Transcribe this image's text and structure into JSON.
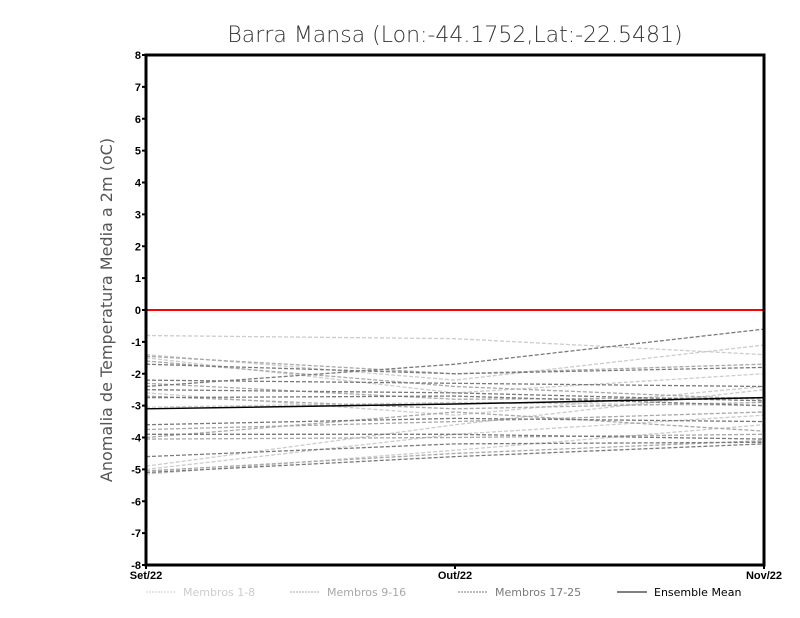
{
  "chart_data": {
    "type": "line",
    "title": "Barra Mansa (Lon:-44.1752,Lat:-22.5481)",
    "xlabel": "",
    "ylabel": "Anomalia de Temperatura Media a 2m (oC)",
    "categories": [
      "Set/22",
      "Out/22",
      "Nov/22"
    ],
    "ylim": [
      -8,
      8
    ],
    "yticks": [
      "-8",
      "-7",
      "-6",
      "-5",
      "-4",
      "-3",
      "-2",
      "-1",
      "0",
      "1",
      "2",
      "3",
      "4",
      "5",
      "6",
      "7",
      "8"
    ],
    "reference_line": {
      "value": 0,
      "color": "#ff0000"
    },
    "groups": [
      {
        "name": "Membros 1-8",
        "color": "#cccccc",
        "dashed": true
      },
      {
        "name": "Membros 9-16",
        "color": "#a8a8a8",
        "dashed": true
      },
      {
        "name": "Membros 17-25",
        "color": "#7a7a7a",
        "dashed": true
      },
      {
        "name": "Ensemble Mean",
        "color": "#000000",
        "dashed": false
      }
    ],
    "series": [
      {
        "group": 0,
        "values": [
          -0.8,
          -0.9,
          -1.4
        ]
      },
      {
        "group": 0,
        "values": [
          -1.4,
          -2.2,
          -1.1
        ]
      },
      {
        "group": 0,
        "values": [
          -1.5,
          -2.6,
          -2.0
        ]
      },
      {
        "group": 0,
        "values": [
          -2.6,
          -3.3,
          -2.4
        ]
      },
      {
        "group": 0,
        "values": [
          -3.05,
          -2.9,
          -3.0
        ]
      },
      {
        "group": 0,
        "values": [
          -4.9,
          -3.6,
          -2.5
        ]
      },
      {
        "group": 0,
        "values": [
          -5.0,
          -3.9,
          -3.3
        ]
      },
      {
        "group": 0,
        "values": [
          -5.15,
          -4.4,
          -3.6
        ]
      },
      {
        "group": 1,
        "values": [
          -1.45,
          -2.0,
          -1.7
        ]
      },
      {
        "group": 1,
        "values": [
          -1.6,
          -2.4,
          -2.8
        ]
      },
      {
        "group": 1,
        "values": [
          -2.3,
          -2.8,
          -2.75
        ]
      },
      {
        "group": 1,
        "values": [
          -2.7,
          -3.1,
          -2.9
        ]
      },
      {
        "group": 1,
        "values": [
          -3.75,
          -3.5,
          -3.2
        ]
      },
      {
        "group": 1,
        "values": [
          -4.0,
          -3.2,
          -3.8
        ]
      },
      {
        "group": 1,
        "values": [
          -5.05,
          -4.5,
          -4.1
        ]
      },
      {
        "group": 1,
        "values": [
          -4.05,
          -4.0,
          -3.9
        ]
      },
      {
        "group": 2,
        "values": [
          -2.4,
          -1.7,
          -0.6
        ]
      },
      {
        "group": 2,
        "values": [
          -1.7,
          -2.0,
          -1.8
        ]
      },
      {
        "group": 2,
        "values": [
          -2.2,
          -2.3,
          -2.4
        ]
      },
      {
        "group": 2,
        "values": [
          -2.5,
          -2.6,
          -2.85
        ]
      },
      {
        "group": 2,
        "values": [
          -2.75,
          -2.7,
          -3.0
        ]
      },
      {
        "group": 2,
        "values": [
          -3.6,
          -3.4,
          -3.5
        ]
      },
      {
        "group": 2,
        "values": [
          -3.9,
          -3.9,
          -4.05
        ]
      },
      {
        "group": 2,
        "values": [
          -4.6,
          -4.2,
          -4.15
        ]
      },
      {
        "group": 2,
        "values": [
          -5.1,
          -4.6,
          -4.2
        ]
      }
    ],
    "mean": [
      -3.1,
      -2.95,
      -2.75
    ],
    "grid": false,
    "legend_position": "bottom"
  }
}
